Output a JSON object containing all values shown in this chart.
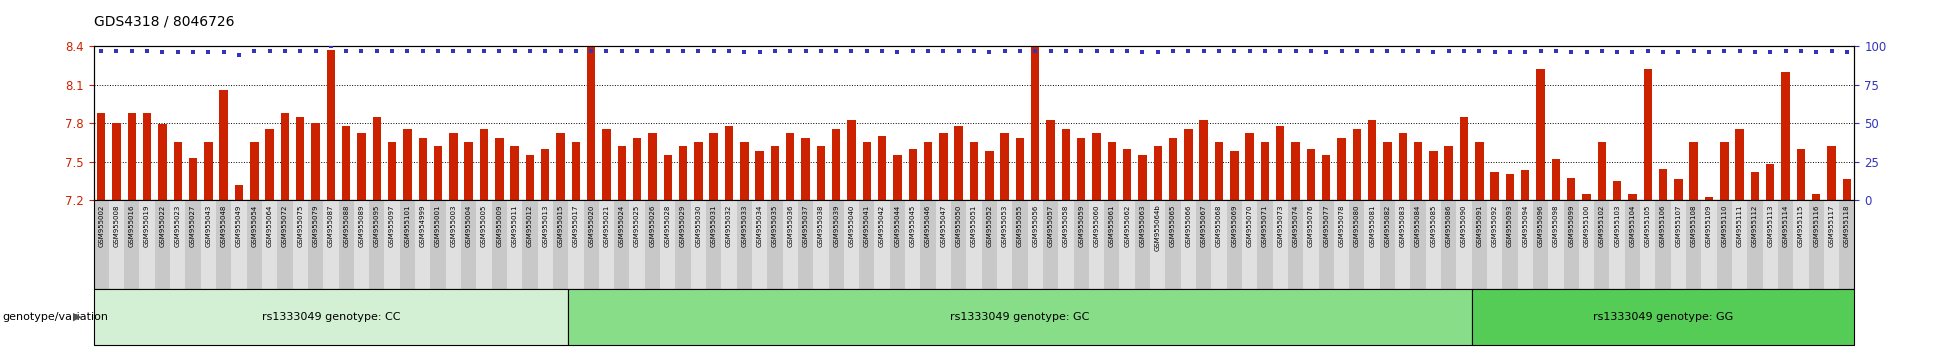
{
  "title": "GDS4318 / 8046726",
  "ylim_left": [
    7.2,
    8.4
  ],
  "ylim_right": [
    0,
    100
  ],
  "yticks_left": [
    7.2,
    7.5,
    7.8,
    8.1,
    8.4
  ],
  "yticks_right": [
    0,
    25,
    50,
    75,
    100
  ],
  "bar_color": "#cc2200",
  "dot_color": "#3333bb",
  "groups": [
    {
      "label": "rs1333049 genotype: CC",
      "color": "#d4f0d4"
    },
    {
      "label": "rs1333049 genotype: GC",
      "color": "#88dd88"
    },
    {
      "label": "rs1333049 genotype: GG",
      "color": "#55cc55"
    }
  ],
  "genotype_label": "genotype/variation",
  "samples": [
    {
      "id": "GSM955002",
      "value": 7.88,
      "percentile": 97,
      "group": 0
    },
    {
      "id": "GSM955008",
      "value": 7.8,
      "percentile": 97,
      "group": 0
    },
    {
      "id": "GSM955016",
      "value": 7.88,
      "percentile": 97,
      "group": 0
    },
    {
      "id": "GSM955019",
      "value": 7.88,
      "percentile": 97,
      "group": 0
    },
    {
      "id": "GSM955022",
      "value": 7.79,
      "percentile": 96,
      "group": 0
    },
    {
      "id": "GSM955023",
      "value": 7.65,
      "percentile": 96,
      "group": 0
    },
    {
      "id": "GSM955027",
      "value": 7.53,
      "percentile": 96,
      "group": 0
    },
    {
      "id": "GSM955043",
      "value": 7.65,
      "percentile": 96,
      "group": 0
    },
    {
      "id": "GSM955048",
      "value": 8.06,
      "percentile": 96,
      "group": 0
    },
    {
      "id": "GSM955049",
      "value": 7.32,
      "percentile": 94,
      "group": 0
    },
    {
      "id": "GSM955054",
      "value": 7.65,
      "percentile": 97,
      "group": 0
    },
    {
      "id": "GSM955064",
      "value": 7.75,
      "percentile": 97,
      "group": 0
    },
    {
      "id": "GSM955072",
      "value": 7.88,
      "percentile": 97,
      "group": 0
    },
    {
      "id": "GSM955075",
      "value": 7.85,
      "percentile": 97,
      "group": 0
    },
    {
      "id": "GSM955079",
      "value": 7.8,
      "percentile": 97,
      "group": 0
    },
    {
      "id": "GSM955087",
      "value": 8.37,
      "percentile": 100,
      "group": 0
    },
    {
      "id": "GSM955088",
      "value": 7.78,
      "percentile": 97,
      "group": 0
    },
    {
      "id": "GSM955089",
      "value": 7.72,
      "percentile": 97,
      "group": 0
    },
    {
      "id": "GSM955095",
      "value": 7.85,
      "percentile": 97,
      "group": 0
    },
    {
      "id": "GSM955097",
      "value": 7.65,
      "percentile": 97,
      "group": 0
    },
    {
      "id": "GSM955101",
      "value": 7.75,
      "percentile": 97,
      "group": 0
    },
    {
      "id": "GSM954999",
      "value": 7.68,
      "percentile": 97,
      "group": 0
    },
    {
      "id": "GSM955001",
      "value": 7.62,
      "percentile": 97,
      "group": 0
    },
    {
      "id": "GSM955003",
      "value": 7.72,
      "percentile": 97,
      "group": 0
    },
    {
      "id": "GSM955004",
      "value": 7.65,
      "percentile": 97,
      "group": 0
    },
    {
      "id": "GSM955005",
      "value": 7.75,
      "percentile": 97,
      "group": 0
    },
    {
      "id": "GSM955009",
      "value": 7.68,
      "percentile": 97,
      "group": 0
    },
    {
      "id": "GSM955011",
      "value": 7.62,
      "percentile": 97,
      "group": 0
    },
    {
      "id": "GSM955012",
      "value": 7.55,
      "percentile": 97,
      "group": 0
    },
    {
      "id": "GSM955013",
      "value": 7.6,
      "percentile": 97,
      "group": 0
    },
    {
      "id": "GSM955015",
      "value": 7.72,
      "percentile": 97,
      "group": 0
    },
    {
      "id": "GSM955017",
      "value": 7.65,
      "percentile": 97,
      "group": 1
    },
    {
      "id": "GSM955020",
      "value": 8.42,
      "percentile": 97,
      "group": 1
    },
    {
      "id": "GSM955021",
      "value": 7.75,
      "percentile": 97,
      "group": 1
    },
    {
      "id": "GSM955024",
      "value": 7.62,
      "percentile": 97,
      "group": 1
    },
    {
      "id": "GSM955025",
      "value": 7.68,
      "percentile": 97,
      "group": 1
    },
    {
      "id": "GSM955026",
      "value": 7.72,
      "percentile": 97,
      "group": 1
    },
    {
      "id": "GSM955028",
      "value": 7.55,
      "percentile": 97,
      "group": 1
    },
    {
      "id": "GSM955029",
      "value": 7.62,
      "percentile": 97,
      "group": 1
    },
    {
      "id": "GSM955030",
      "value": 7.65,
      "percentile": 97,
      "group": 1
    },
    {
      "id": "GSM955031",
      "value": 7.72,
      "percentile": 97,
      "group": 1
    },
    {
      "id": "GSM955032",
      "value": 7.78,
      "percentile": 97,
      "group": 1
    },
    {
      "id": "GSM955033",
      "value": 7.65,
      "percentile": 96,
      "group": 1
    },
    {
      "id": "GSM955034",
      "value": 7.58,
      "percentile": 96,
      "group": 1
    },
    {
      "id": "GSM955035",
      "value": 7.62,
      "percentile": 97,
      "group": 1
    },
    {
      "id": "GSM955036",
      "value": 7.72,
      "percentile": 97,
      "group": 1
    },
    {
      "id": "GSM955037",
      "value": 7.68,
      "percentile": 97,
      "group": 1
    },
    {
      "id": "GSM955038",
      "value": 7.62,
      "percentile": 97,
      "group": 1
    },
    {
      "id": "GSM955039",
      "value": 7.75,
      "percentile": 97,
      "group": 1
    },
    {
      "id": "GSM955040",
      "value": 7.82,
      "percentile": 97,
      "group": 1
    },
    {
      "id": "GSM955041",
      "value": 7.65,
      "percentile": 97,
      "group": 1
    },
    {
      "id": "GSM955042",
      "value": 7.7,
      "percentile": 97,
      "group": 1
    },
    {
      "id": "GSM955044",
      "value": 7.55,
      "percentile": 96,
      "group": 1
    },
    {
      "id": "GSM955045",
      "value": 7.6,
      "percentile": 97,
      "group": 1
    },
    {
      "id": "GSM955046",
      "value": 7.65,
      "percentile": 97,
      "group": 1
    },
    {
      "id": "GSM955047",
      "value": 7.72,
      "percentile": 97,
      "group": 1
    },
    {
      "id": "GSM955050",
      "value": 7.78,
      "percentile": 97,
      "group": 1
    },
    {
      "id": "GSM955051",
      "value": 7.65,
      "percentile": 97,
      "group": 1
    },
    {
      "id": "GSM955052",
      "value": 7.58,
      "percentile": 96,
      "group": 1
    },
    {
      "id": "GSM955053",
      "value": 7.72,
      "percentile": 97,
      "group": 1
    },
    {
      "id": "GSM955055",
      "value": 7.68,
      "percentile": 97,
      "group": 1
    },
    {
      "id": "GSM955056",
      "value": 8.42,
      "percentile": 97,
      "group": 1
    },
    {
      "id": "GSM955057",
      "value": 7.82,
      "percentile": 97,
      "group": 1
    },
    {
      "id": "GSM955058",
      "value": 7.75,
      "percentile": 97,
      "group": 1
    },
    {
      "id": "GSM955059",
      "value": 7.68,
      "percentile": 97,
      "group": 1
    },
    {
      "id": "GSM955060",
      "value": 7.72,
      "percentile": 97,
      "group": 1
    },
    {
      "id": "GSM955061",
      "value": 7.65,
      "percentile": 97,
      "group": 1
    },
    {
      "id": "GSM955062",
      "value": 7.6,
      "percentile": 97,
      "group": 1
    },
    {
      "id": "GSM955063",
      "value": 7.55,
      "percentile": 96,
      "group": 1
    },
    {
      "id": "GSM955064b",
      "value": 7.62,
      "percentile": 96,
      "group": 1
    },
    {
      "id": "GSM955065",
      "value": 7.68,
      "percentile": 97,
      "group": 1
    },
    {
      "id": "GSM955066",
      "value": 7.75,
      "percentile": 97,
      "group": 1
    },
    {
      "id": "GSM955067",
      "value": 7.82,
      "percentile": 97,
      "group": 1
    },
    {
      "id": "GSM955068",
      "value": 7.65,
      "percentile": 97,
      "group": 1
    },
    {
      "id": "GSM955069",
      "value": 7.58,
      "percentile": 97,
      "group": 1
    },
    {
      "id": "GSM955070",
      "value": 7.72,
      "percentile": 97,
      "group": 1
    },
    {
      "id": "GSM955071",
      "value": 7.65,
      "percentile": 97,
      "group": 1
    },
    {
      "id": "GSM955073",
      "value": 7.78,
      "percentile": 97,
      "group": 1
    },
    {
      "id": "GSM955074",
      "value": 7.65,
      "percentile": 97,
      "group": 1
    },
    {
      "id": "GSM955076",
      "value": 7.6,
      "percentile": 97,
      "group": 1
    },
    {
      "id": "GSM955077",
      "value": 7.55,
      "percentile": 96,
      "group": 1
    },
    {
      "id": "GSM955078",
      "value": 7.68,
      "percentile": 97,
      "group": 1
    },
    {
      "id": "GSM955080",
      "value": 7.75,
      "percentile": 97,
      "group": 1
    },
    {
      "id": "GSM955081",
      "value": 7.82,
      "percentile": 97,
      "group": 1
    },
    {
      "id": "GSM955082",
      "value": 7.65,
      "percentile": 97,
      "group": 1
    },
    {
      "id": "GSM955083",
      "value": 7.72,
      "percentile": 97,
      "group": 1
    },
    {
      "id": "GSM955084",
      "value": 7.65,
      "percentile": 97,
      "group": 1
    },
    {
      "id": "GSM955085",
      "value": 7.58,
      "percentile": 96,
      "group": 1
    },
    {
      "id": "GSM955086",
      "value": 7.62,
      "percentile": 97,
      "group": 1
    },
    {
      "id": "GSM955090",
      "value": 7.85,
      "percentile": 97,
      "group": 1
    },
    {
      "id": "GSM955091",
      "value": 7.65,
      "percentile": 97,
      "group": 2
    },
    {
      "id": "GSM955092",
      "value": 7.42,
      "percentile": 96,
      "group": 2
    },
    {
      "id": "GSM955093",
      "value": 7.4,
      "percentile": 96,
      "group": 2
    },
    {
      "id": "GSM955094",
      "value": 7.43,
      "percentile": 96,
      "group": 2
    },
    {
      "id": "GSM955096",
      "value": 8.22,
      "percentile": 97,
      "group": 2
    },
    {
      "id": "GSM955098",
      "value": 7.52,
      "percentile": 97,
      "group": 2
    },
    {
      "id": "GSM955099",
      "value": 7.37,
      "percentile": 96,
      "group": 2
    },
    {
      "id": "GSM955100",
      "value": 7.25,
      "percentile": 96,
      "group": 2
    },
    {
      "id": "GSM955102",
      "value": 7.65,
      "percentile": 97,
      "group": 2
    },
    {
      "id": "GSM955103",
      "value": 7.35,
      "percentile": 96,
      "group": 2
    },
    {
      "id": "GSM955104",
      "value": 7.25,
      "percentile": 96,
      "group": 2
    },
    {
      "id": "GSM955105",
      "value": 8.22,
      "percentile": 97,
      "group": 2
    },
    {
      "id": "GSM955106",
      "value": 7.44,
      "percentile": 96,
      "group": 2
    },
    {
      "id": "GSM955107",
      "value": 7.36,
      "percentile": 96,
      "group": 2
    },
    {
      "id": "GSM955108",
      "value": 7.65,
      "percentile": 97,
      "group": 2
    },
    {
      "id": "GSM955109",
      "value": 7.22,
      "percentile": 96,
      "group": 2
    },
    {
      "id": "GSM955110",
      "value": 7.65,
      "percentile": 97,
      "group": 2
    },
    {
      "id": "GSM955111",
      "value": 7.75,
      "percentile": 97,
      "group": 2
    },
    {
      "id": "GSM955112",
      "value": 7.42,
      "percentile": 96,
      "group": 2
    },
    {
      "id": "GSM955113",
      "value": 7.48,
      "percentile": 96,
      "group": 2
    },
    {
      "id": "GSM955114",
      "value": 8.2,
      "percentile": 97,
      "group": 2
    },
    {
      "id": "GSM955115",
      "value": 7.6,
      "percentile": 97,
      "group": 2
    },
    {
      "id": "GSM955116",
      "value": 7.25,
      "percentile": 96,
      "group": 2
    },
    {
      "id": "GSM955117",
      "value": 7.62,
      "percentile": 97,
      "group": 2
    },
    {
      "id": "GSM955118",
      "value": 7.36,
      "percentile": 96,
      "group": 2
    }
  ]
}
